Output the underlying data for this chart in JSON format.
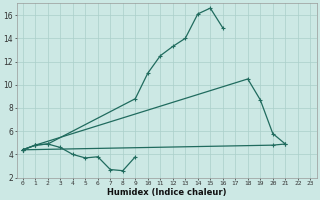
{
  "xlabel": "Humidex (Indice chaleur)",
  "x_values": [
    0,
    1,
    2,
    3,
    4,
    5,
    6,
    7,
    8,
    9,
    10,
    11,
    12,
    13,
    14,
    15,
    16,
    17,
    18,
    19,
    20,
    21,
    22,
    23
  ],
  "line1_y": [
    4.4,
    4.8,
    4.9,
    null,
    null,
    null,
    null,
    null,
    null,
    8.8,
    11.0,
    12.5,
    13.3,
    14.0,
    16.1,
    16.6,
    14.9,
    null,
    null,
    null,
    null,
    null,
    null,
    null
  ],
  "line2_y": [
    4.4,
    4.8,
    4.9,
    4.6,
    4.0,
    3.7,
    3.8,
    2.7,
    2.6,
    3.8,
    null,
    null,
    null,
    null,
    null,
    null,
    null,
    null,
    null,
    null,
    null,
    null,
    null,
    null
  ],
  "line3_y": [
    4.4,
    4.8,
    null,
    null,
    null,
    null,
    null,
    null,
    null,
    null,
    null,
    null,
    null,
    null,
    null,
    null,
    null,
    null,
    10.5,
    8.7,
    5.8,
    null,
    null,
    null
  ],
  "line4_y": [
    4.4,
    4.5,
    null,
    null,
    null,
    null,
    null,
    null,
    null,
    null,
    null,
    null,
    null,
    null,
    null,
    null,
    null,
    null,
    null,
    null,
    4.8,
    null,
    null,
    null
  ],
  "line3_full": [
    [
      0,
      4.4
    ],
    [
      1,
      4.8
    ],
    [
      18,
      10.5
    ],
    [
      19,
      8.7
    ],
    [
      20,
      5.8
    ],
    [
      21,
      4.9
    ]
  ],
  "line4_full": [
    [
      0,
      4.4
    ],
    [
      20,
      4.8
    ],
    [
      21,
      4.9
    ]
  ],
  "ylim": [
    2,
    17
  ],
  "xlim": [
    -0.5,
    23.5
  ],
  "yticks": [
    2,
    4,
    6,
    8,
    10,
    12,
    14,
    16
  ],
  "xtick_labels": [
    "0",
    "1",
    "2",
    "3",
    "4",
    "5",
    "6",
    "7",
    "8",
    "9",
    "10",
    "11",
    "12",
    "13",
    "14",
    "15",
    "16",
    "17",
    "18",
    "19",
    "20",
    "21",
    "22",
    "23"
  ],
  "line_color": "#206b5e",
  "bg_color": "#cce8e4",
  "grid_color": "#aacfca",
  "marker": "+"
}
